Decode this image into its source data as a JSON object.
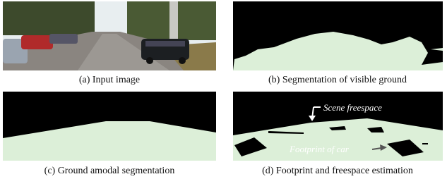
{
  "panels": [
    {
      "caption": "(a) Input image"
    },
    {
      "caption": "(b) Segmentation of visible ground"
    },
    {
      "caption": "(c) Ground amodal segmentation"
    },
    {
      "caption": "(d) Footprint and freespace estimation",
      "annotations": [
        "Scene freespace",
        "Footprint of car"
      ]
    }
  ]
}
